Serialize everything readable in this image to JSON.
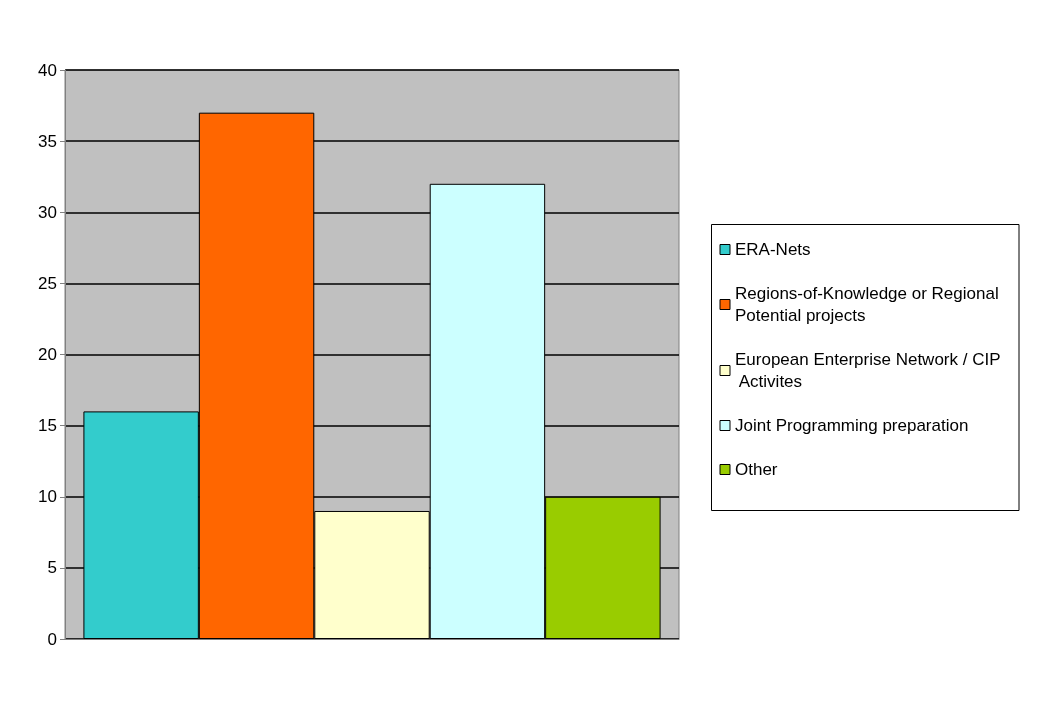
{
  "chart_data": {
    "type": "bar",
    "categories": [
      null
    ],
    "series": [
      {
        "name": "ERA-Nets",
        "color": "#33cccc",
        "values": [
          16
        ]
      },
      {
        "name": "Regions-of-Knowledge or Regional Potential projects",
        "color": "#ff6600",
        "values": [
          37
        ]
      },
      {
        "name": "European Enterprise Network / CIP Activites",
        "color": "#ffffcc",
        "values": [
          9
        ]
      },
      {
        "name": "Joint Programming preparation",
        "color": "#ccffff",
        "values": [
          32
        ]
      },
      {
        "name": "Other",
        "color": "#99cc00",
        "values": [
          10
        ]
      }
    ],
    "ylim": [
      0,
      40
    ],
    "yticks": [
      0,
      5,
      10,
      15,
      20,
      25,
      30,
      35,
      40
    ],
    "grid": "y",
    "legend": "right"
  }
}
